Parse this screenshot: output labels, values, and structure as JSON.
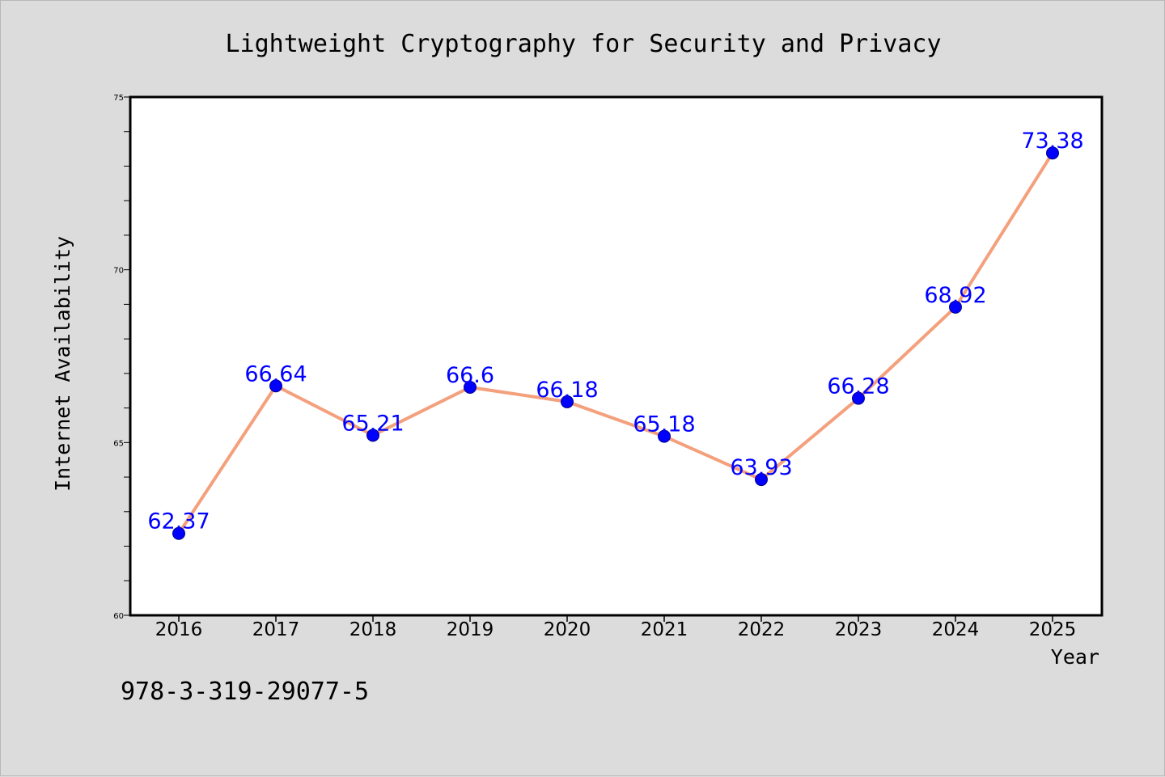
{
  "chart_data": {
    "type": "line",
    "title": "Lightweight Cryptography for Security and Privacy",
    "xlabel": "Year",
    "ylabel": "Internet Availability",
    "categories": [
      "2016",
      "2017",
      "2018",
      "2019",
      "2020",
      "2021",
      "2022",
      "2023",
      "2024",
      "2025"
    ],
    "series": [
      {
        "values": [
          62.37,
          66.64,
          65.21,
          66.6,
          66.18,
          65.18,
          63.93,
          66.28,
          68.92,
          73.38
        ],
        "data_labels": [
          "62.37",
          "66.64",
          "65.21",
          "66.6",
          "66.18",
          "65.18",
          "63.93",
          "66.28",
          "68.92",
          "73.38"
        ],
        "line_color": "#f4a07c",
        "marker_color": "#0000ff"
      }
    ],
    "ylim": [
      60,
      75
    ],
    "yticks": [
      60,
      65,
      70,
      75
    ],
    "ytick_labels": [
      "60",
      "65",
      "70",
      "75"
    ],
    "grid": false,
    "legend": "none",
    "background_color": "#dcdcdc",
    "plot_background_color": "#ffffff"
  },
  "footer_text": "978-3-319-29077-5"
}
